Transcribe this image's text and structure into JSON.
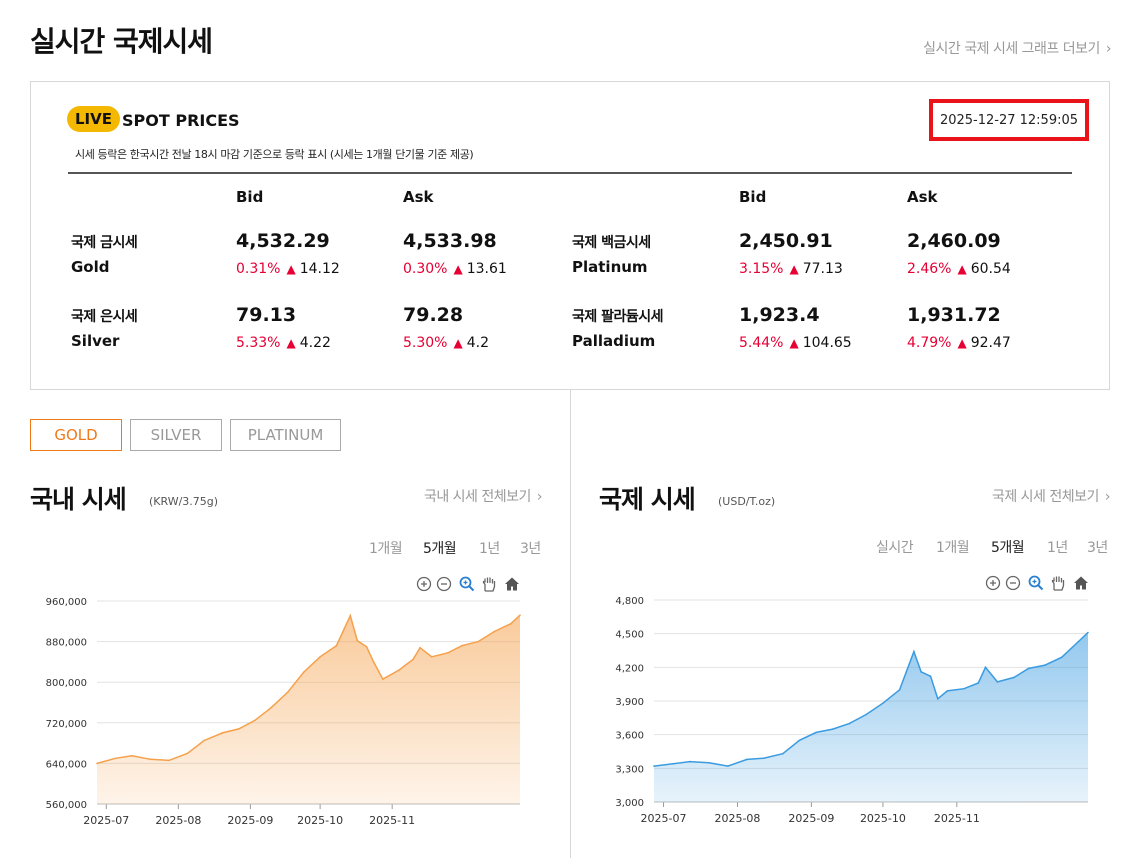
{
  "header": {
    "title": "실시간 국제시세",
    "graph_link": "실시간 국제 시세 그래프 더보기",
    "chevron": "›"
  },
  "spot": {
    "badge": "LIVE",
    "title": "SPOT PRICES",
    "timestamp": "2025-12-27 12:59:05",
    "note": "시세 등락은 한국시간 전날 18시 마감 기준으로 등락 표시 (시세는 1개월 단기물 기준 제공)",
    "bid_label": "Bid",
    "ask_label": "Ask",
    "arrow": "▲",
    "metals": [
      {
        "name_ko": "국제 금시세",
        "name_en": "Gold",
        "bid": "4,532.29",
        "bid_pct": "0.31%",
        "bid_diff": "14.12",
        "ask": "4,533.98",
        "ask_pct": "0.30%",
        "ask_diff": "13.61"
      },
      {
        "name_ko": "국제 은시세",
        "name_en": "Silver",
        "bid": "79.13",
        "bid_pct": "5.33%",
        "bid_diff": "4.22",
        "ask": "79.28",
        "ask_pct": "5.30%",
        "ask_diff": "4.2"
      },
      {
        "name_ko": "국제 백금시세",
        "name_en": "Platinum",
        "bid": "2,450.91",
        "bid_pct": "3.15%",
        "bid_diff": "77.13",
        "ask": "2,460.09",
        "ask_pct": "2.46%",
        "ask_diff": "60.54"
      },
      {
        "name_ko": "국제 팔라듐시세",
        "name_en": "Palladium",
        "bid": "1,923.4",
        "bid_pct": "5.44%",
        "bid_diff": "104.65",
        "ask": "1,931.72",
        "ask_pct": "4.79%",
        "ask_diff": "92.47"
      }
    ]
  },
  "metal_tabs": [
    "GOLD",
    "SILVER",
    "PLATINUM"
  ],
  "domestic": {
    "title": "국내 시세",
    "unit": "(KRW/3.75g)",
    "more": "국내 시세 전체보기",
    "periods": [
      "1개월",
      "5개월",
      "1년",
      "3년"
    ],
    "active_period": "5개월"
  },
  "international": {
    "title": "국제 시세",
    "unit": "(USD/T.oz)",
    "more": "국제 시세 전체보기",
    "periods": [
      "실시간",
      "1개월",
      "5개월",
      "1년",
      "3년"
    ],
    "active_period": "5개월"
  },
  "colors": {
    "accent": "#f07a1a",
    "up": "#e60033",
    "live": "#f5b800",
    "highlight": "#e8141a",
    "domestic_line": "#f5a04a",
    "international_line": "#3b9be0"
  },
  "chart_data": [
    {
      "type": "area",
      "series_color": "#f5a04a",
      "x": [
        "2025-06-27",
        "2025-07-05",
        "2025-07-12",
        "2025-07-20",
        "2025-07-28",
        "2025-08-05",
        "2025-08-12",
        "2025-08-20",
        "2025-08-27",
        "2025-09-03",
        "2025-09-10",
        "2025-09-17",
        "2025-09-24",
        "2025-10-01",
        "2025-10-08",
        "2025-10-14",
        "2025-10-17",
        "2025-10-21",
        "2025-10-24",
        "2025-10-28",
        "2025-11-04",
        "2025-11-10",
        "2025-11-13",
        "2025-11-18",
        "2025-11-25",
        "2025-12-01",
        "2025-12-08",
        "2025-12-15",
        "2025-12-22",
        "2025-12-26"
      ],
      "values": [
        640000,
        650000,
        655000,
        648000,
        646000,
        660000,
        685000,
        700000,
        708000,
        725000,
        750000,
        780000,
        820000,
        850000,
        872000,
        931000,
        882000,
        870000,
        840000,
        806000,
        824000,
        845000,
        868000,
        850000,
        858000,
        872000,
        880000,
        900000,
        915000,
        932000
      ],
      "ylim": [
        560000,
        960000
      ],
      "yticks": [
        "560,000",
        "640,000",
        "720,000",
        "800,000",
        "880,000",
        "960,000"
      ],
      "xticks": [
        "2025-07",
        "2025-08",
        "2025-09",
        "2025-10",
        "2025-11"
      ],
      "grid": true
    },
    {
      "type": "area",
      "series_color": "#3b9be0",
      "x": [
        "2025-06-27",
        "2025-07-05",
        "2025-07-12",
        "2025-07-20",
        "2025-07-28",
        "2025-08-05",
        "2025-08-12",
        "2025-08-20",
        "2025-08-27",
        "2025-09-03",
        "2025-09-10",
        "2025-09-17",
        "2025-09-24",
        "2025-10-01",
        "2025-10-08",
        "2025-10-14",
        "2025-10-17",
        "2025-10-21",
        "2025-10-24",
        "2025-10-28",
        "2025-11-04",
        "2025-11-10",
        "2025-11-13",
        "2025-11-18",
        "2025-11-25",
        "2025-12-01",
        "2025-12-08",
        "2025-12-15",
        "2025-12-22",
        "2025-12-26"
      ],
      "values": [
        3320,
        3340,
        3360,
        3350,
        3320,
        3380,
        3390,
        3430,
        3550,
        3620,
        3650,
        3700,
        3780,
        3880,
        4000,
        4340,
        4160,
        4120,
        3920,
        3990,
        4010,
        4060,
        4200,
        4070,
        4110,
        4190,
        4220,
        4290,
        4430,
        4510
      ],
      "ylim": [
        3000,
        4800
      ],
      "yticks": [
        "3,000",
        "3,300",
        "3,600",
        "3,900",
        "4,200",
        "4,500",
        "4,800"
      ],
      "xticks": [
        "2025-07",
        "2025-08",
        "2025-09",
        "2025-10",
        "2025-11"
      ],
      "grid": true
    }
  ]
}
